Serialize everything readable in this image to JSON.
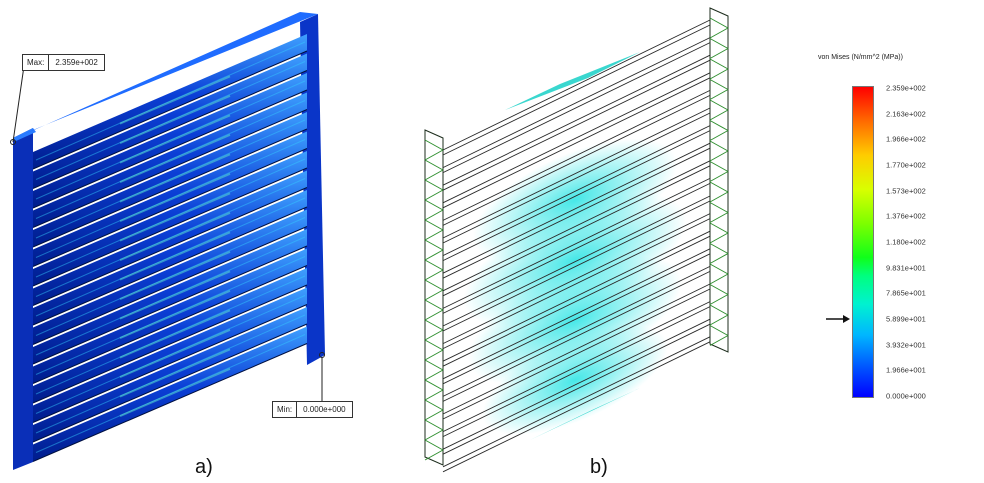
{
  "panels": {
    "a_label": "a)",
    "b_label": "b)"
  },
  "callouts": {
    "max_key": "Max:",
    "max_value": "2.359e+002",
    "min_key": "Min:",
    "min_value": "0.000e+000"
  },
  "legend": {
    "title": "von Mises (N/mm^2 (MPa))",
    "ticks": [
      "2.359e+002",
      "2.163e+002",
      "1.966e+002",
      "1.770e+002",
      "1.573e+002",
      "1.376e+002",
      "1.180e+002",
      "9.831e+001",
      "7.865e+001",
      "5.899e+001",
      "3.932e+001",
      "1.966e+001",
      "0.000e+000"
    ],
    "colors": {
      "max": "#ff0000",
      "mid": "#10ff1a",
      "min": "#0000ff"
    }
  },
  "model": {
    "slat_count": 16
  }
}
